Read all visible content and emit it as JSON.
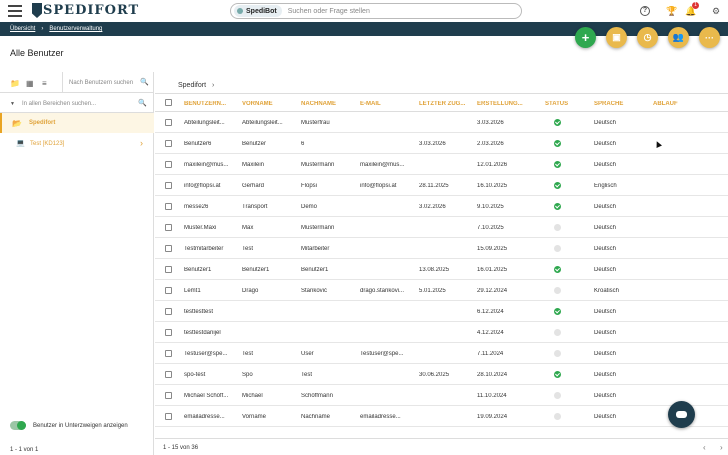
{
  "header": {
    "logo_text": "SPEDIFORT",
    "bot_label": "SpediBot",
    "search_placeholder": "Suchen oder Frage stellen",
    "notification_count": "1"
  },
  "breadcrumb": {
    "items": [
      "Übersicht",
      "Benutzerverwaltung"
    ]
  },
  "page_title": "Alle Benutzer",
  "sidebar": {
    "search_placeholder": "Nach Benutzern suchen",
    "area_search_placeholder": "In allen Bereichen suchen...",
    "tree": [
      {
        "label": "Spedifort",
        "selected": true
      },
      {
        "label": "Test [KD123]",
        "selected": false
      }
    ],
    "toggle_label": "Benutzer in Unterzweigen anzeigen",
    "toggle_on": true,
    "footer": "1 - 1 von 1"
  },
  "table": {
    "crumb": "Spedifort",
    "columns": [
      "BENUTZERN...",
      "VORNAME",
      "NACHNAME",
      "E-MAIL",
      "LETZTER ZUG...",
      "ERSTELLUNG...",
      "STATUS",
      "SPRACHE",
      "ABLAUF"
    ],
    "rows": [
      {
        "user": "Abteilungsleit...",
        "first": "Abteilungsleit...",
        "last": "Musterfrau",
        "email": "",
        "last_login": "",
        "created": "3.03.2026",
        "active": true,
        "lang": "Deutsch"
      },
      {
        "user": "Benutzer6",
        "first": "Benutzer",
        "last": "6",
        "email": "",
        "last_login": "3.03.2026",
        "created": "2.03.2026",
        "active": true,
        "lang": "Deutsch"
      },
      {
        "user": "maxilein@mus...",
        "first": "Maxilein",
        "last": "Mustermann",
        "email": "maxilein@mus...",
        "last_login": "",
        "created": "12.01.2026",
        "active": true,
        "lang": "Deutsch"
      },
      {
        "user": "info@flopsi.at",
        "first": "Gerhard",
        "last": "Flopsi",
        "email": "info@flopsi.at",
        "last_login": "28.11.2025",
        "created": "16.10.2025",
        "active": true,
        "lang": "Englisch"
      },
      {
        "user": "messe26",
        "first": "Transport",
        "last": "Demo",
        "email": "",
        "last_login": "3.02.2026",
        "created": "9.10.2025",
        "active": true,
        "lang": "Deutsch"
      },
      {
        "user": "Muster.Maxi",
        "first": "Max",
        "last": "Mustermann",
        "email": "",
        "last_login": "",
        "created": "7.10.2025",
        "active": false,
        "lang": "Deutsch"
      },
      {
        "user": "Testmitarbeiter",
        "first": "Test",
        "last": "Mitarbeiter",
        "email": "",
        "last_login": "",
        "created": "15.09.2025",
        "active": false,
        "lang": "Deutsch"
      },
      {
        "user": "Benutzer1",
        "first": "Benutzer1",
        "last": "Benutzer1",
        "email": "",
        "last_login": "13.08.2025",
        "created": "16.01.2025",
        "active": true,
        "lang": "Deutsch"
      },
      {
        "user": "Lemt1",
        "first": "Drago",
        "last": "Stanković",
        "email": "drago.stankovi...",
        "last_login": "5.01.2025",
        "created": "29.12.2024",
        "active": false,
        "lang": "Kroatisch"
      },
      {
        "user": "testtesttest",
        "first": "",
        "last": "",
        "email": "",
        "last_login": "",
        "created": "6.12.2024",
        "active": true,
        "lang": "Deutsch"
      },
      {
        "user": "testtestdanijel",
        "first": "",
        "last": "",
        "email": "",
        "last_login": "",
        "created": "4.12.2024",
        "active": false,
        "lang": "Deutsch"
      },
      {
        "user": "Testuser@spe...",
        "first": "Test",
        "last": "User",
        "email": "Testuser@spe...",
        "last_login": "",
        "created": "7.11.2024",
        "active": false,
        "lang": "Deutsch"
      },
      {
        "user": "spo-test",
        "first": "Spo",
        "last": "Test",
        "email": "",
        "last_login": "30.06.2025",
        "created": "28.10.2024",
        "active": true,
        "lang": "Deutsch"
      },
      {
        "user": "Michael Schöff...",
        "first": "Michael",
        "last": "Schöffmann",
        "email": "",
        "last_login": "",
        "created": "11.10.2024",
        "active": false,
        "lang": "Deutsch"
      },
      {
        "user": "emailadresse...",
        "first": "Vorname",
        "last": "Nachname",
        "email": "emailadresse...",
        "last_login": "",
        "created": "19.09.2024",
        "active": false,
        "lang": "Deutsch"
      }
    ],
    "footer": "1 - 15 von 36"
  },
  "colors": {
    "primary": "#1f3d4d",
    "accent": "#e0a33a",
    "success": "#2fa84f",
    "fab": "#e9b94c"
  },
  "icons": [
    "menu-icon",
    "help-icon",
    "trophy-icon",
    "bell-icon",
    "gear-icon",
    "plus-icon",
    "badge-icon",
    "clock-icon",
    "users-icon",
    "more-icon",
    "folder-icon",
    "grid-icon",
    "filter-icon",
    "search-icon",
    "laptop-icon",
    "chevron-right-icon",
    "chat-icon"
  ]
}
